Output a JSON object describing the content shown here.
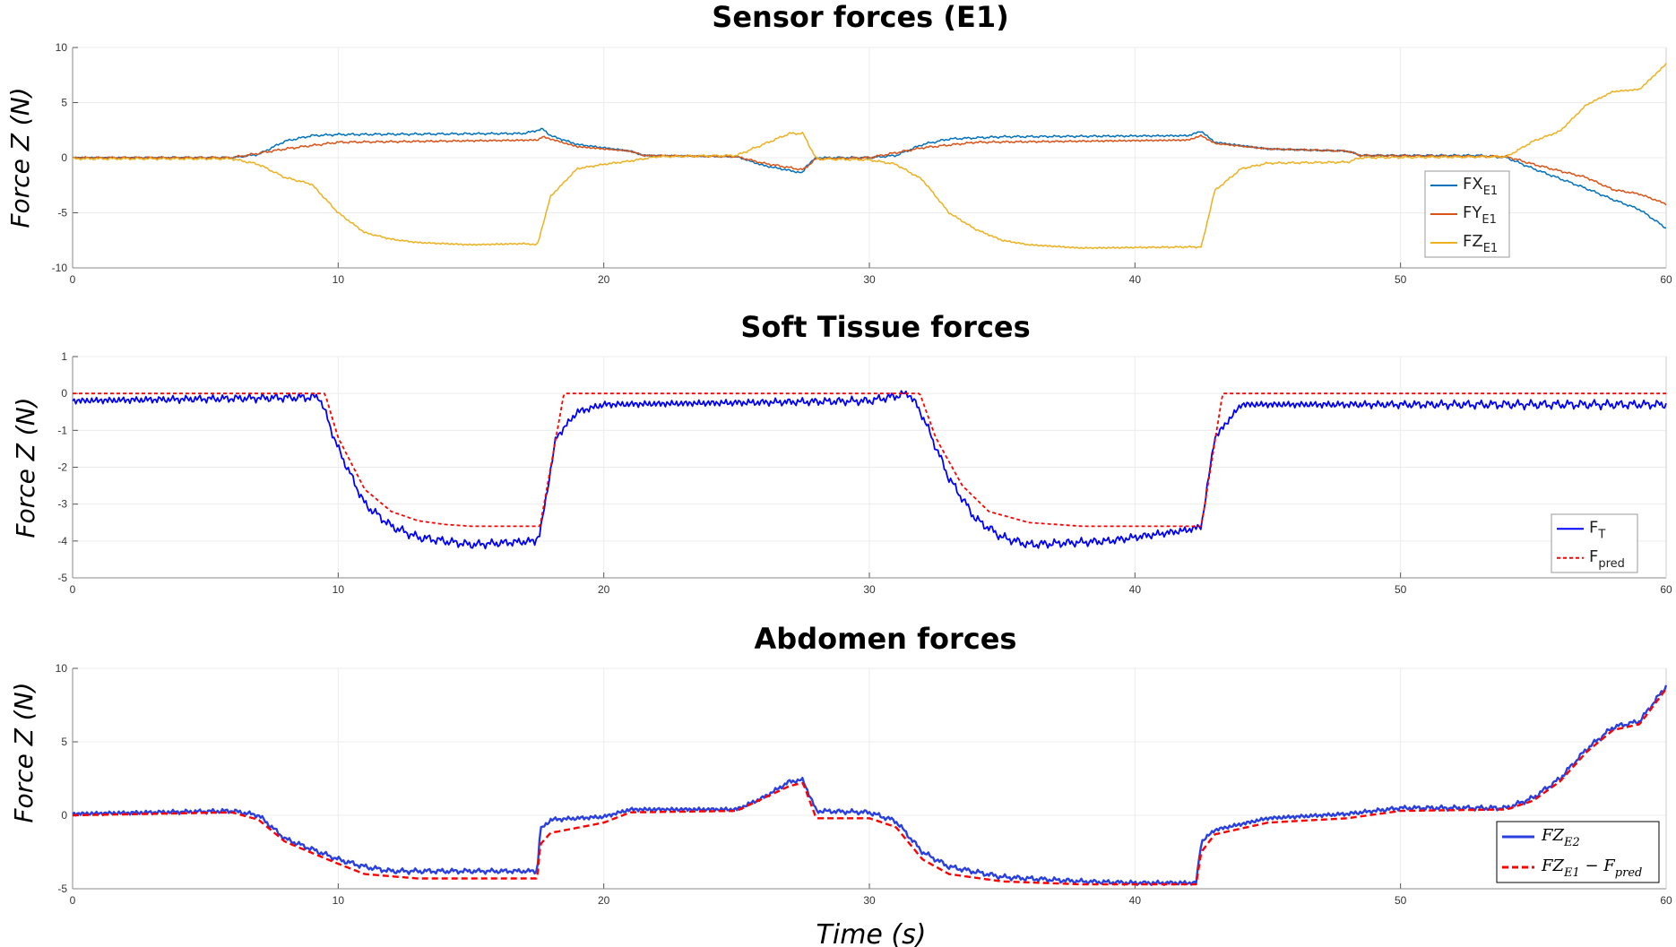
{
  "chart_data": [
    {
      "type": "line",
      "title": "Sensor forces (E1)",
      "ylabel": "Force Z (N)",
      "xlabel": "",
      "xlim": [
        0,
        60
      ],
      "ylim": [
        -10,
        10
      ],
      "xticks": [
        "0",
        "10",
        "20",
        "30",
        "40",
        "50",
        "60"
      ],
      "yticks": [
        "10",
        "5",
        "0",
        "-5",
        "-10"
      ],
      "grid": true,
      "legend_placement": "lower-right",
      "series": [
        {
          "name": "FX",
          "sub": "E1",
          "color": "#0072BD",
          "style": "solid",
          "points": [
            [
              0,
              0
            ],
            [
              6,
              0
            ],
            [
              7,
              0.3
            ],
            [
              8,
              1.5
            ],
            [
              9,
              2
            ],
            [
              10,
              2.1
            ],
            [
              17,
              2.2
            ],
            [
              17.7,
              2.6
            ],
            [
              18,
              2
            ],
            [
              19,
              1.2
            ],
            [
              21,
              0.6
            ],
            [
              21.5,
              0.2
            ],
            [
              25,
              0.1
            ],
            [
              26,
              -0.7
            ],
            [
              27.5,
              -1.4
            ],
            [
              27.6,
              -0.8
            ],
            [
              28,
              0
            ],
            [
              30,
              0
            ],
            [
              31,
              0.2
            ],
            [
              32,
              1.2
            ],
            [
              33,
              1.7
            ],
            [
              35,
              1.9
            ],
            [
              42,
              2
            ],
            [
              42.5,
              2.4
            ],
            [
              43,
              1.4
            ],
            [
              45,
              0.8
            ],
            [
              48,
              0.6
            ],
            [
              48.5,
              0.2
            ],
            [
              53,
              0.2
            ],
            [
              54,
              0
            ],
            [
              55,
              -1
            ],
            [
              57,
              -2.8
            ],
            [
              58,
              -3.8
            ],
            [
              59,
              -4.7
            ],
            [
              60,
              -6.4
            ]
          ]
        },
        {
          "name": "FY",
          "sub": "E1",
          "color": "#D95319",
          "style": "solid",
          "points": [
            [
              0,
              0
            ],
            [
              6,
              0
            ],
            [
              8,
              0.8
            ],
            [
              10,
              1.4
            ],
            [
              17.5,
              1.6
            ],
            [
              17.7,
              1.9
            ],
            [
              19,
              1
            ],
            [
              21,
              0.6
            ],
            [
              21.5,
              0.2
            ],
            [
              25,
              0.1
            ],
            [
              26,
              -0.5
            ],
            [
              27.5,
              -1.1
            ],
            [
              28,
              -0.1
            ],
            [
              30,
              0
            ],
            [
              32,
              0.9
            ],
            [
              34,
              1.4
            ],
            [
              42,
              1.6
            ],
            [
              42.5,
              2
            ],
            [
              43,
              1.3
            ],
            [
              45,
              0.8
            ],
            [
              48,
              0.6
            ],
            [
              48.5,
              0.2
            ],
            [
              54,
              0.1
            ],
            [
              55,
              -0.6
            ],
            [
              57,
              -1.8
            ],
            [
              58,
              -2.9
            ],
            [
              59,
              -3.3
            ],
            [
              60,
              -4.2
            ]
          ]
        },
        {
          "name": "FZ",
          "sub": "E1",
          "color": "#EDB120",
          "style": "solid",
          "points": [
            [
              0,
              -0.1
            ],
            [
              6,
              -0.1
            ],
            [
              7,
              -0.6
            ],
            [
              8,
              -1.8
            ],
            [
              9,
              -2.4
            ],
            [
              10,
              -5
            ],
            [
              11,
              -6.8
            ],
            [
              12,
              -7.4
            ],
            [
              13,
              -7.7
            ],
            [
              15,
              -7.9
            ],
            [
              17,
              -7.8
            ],
            [
              17.5,
              -7.9
            ],
            [
              18,
              -3.5
            ],
            [
              19,
              -1
            ],
            [
              20,
              -0.6
            ],
            [
              21,
              -0.3
            ],
            [
              22,
              0.1
            ],
            [
              25,
              0.2
            ],
            [
              26,
              1.2
            ],
            [
              27,
              2.2
            ],
            [
              27.5,
              2.2
            ],
            [
              28,
              -0.1
            ],
            [
              30,
              -0.2
            ],
            [
              31,
              -0.6
            ],
            [
              32,
              -2
            ],
            [
              33,
              -5
            ],
            [
              34,
              -6.5
            ],
            [
              35,
              -7.5
            ],
            [
              36,
              -7.9
            ],
            [
              38,
              -8.2
            ],
            [
              42,
              -8.1
            ],
            [
              42.5,
              -8.1
            ],
            [
              43,
              -3
            ],
            [
              44,
              -1
            ],
            [
              45,
              -0.5
            ],
            [
              48,
              -0.4
            ],
            [
              48.5,
              0
            ],
            [
              54,
              0.1
            ],
            [
              55,
              1.5
            ],
            [
              56,
              2.4
            ],
            [
              57,
              4.8
            ],
            [
              58,
              6
            ],
            [
              59,
              6.2
            ],
            [
              60,
              8.5
            ]
          ]
        }
      ]
    },
    {
      "type": "line",
      "title": "Soft Tissue forces",
      "ylabel": "Force Z (N)",
      "xlabel": "",
      "xlim": [
        0,
        60
      ],
      "ylim": [
        -5,
        1
      ],
      "xticks": [
        "0",
        "10",
        "20",
        "30",
        "40",
        "50",
        "60"
      ],
      "yticks": [
        "1",
        "0",
        "-1",
        "-2",
        "-3",
        "-4",
        "-5"
      ],
      "grid": true,
      "legend_placement": "lower-right",
      "series": [
        {
          "name": "F",
          "sub": "T",
          "color": "#0000FF",
          "style": "solid",
          "points": [
            [
              0,
              -0.2
            ],
            [
              9.3,
              -0.1
            ],
            [
              10,
              -1.5
            ],
            [
              11,
              -3
            ],
            [
              12,
              -3.6
            ],
            [
              13,
              -3.9
            ],
            [
              15,
              -4.1
            ],
            [
              17.4,
              -4
            ],
            [
              17.6,
              -3.8
            ],
            [
              18.2,
              -1.2
            ],
            [
              19,
              -0.5
            ],
            [
              20,
              -0.3
            ],
            [
              30,
              -0.2
            ],
            [
              31.5,
              0
            ],
            [
              32,
              -0.6
            ],
            [
              33,
              -2.3
            ],
            [
              34,
              -3.4
            ],
            [
              35,
              -3.9
            ],
            [
              36,
              -4.1
            ],
            [
              39,
              -4
            ],
            [
              42,
              -3.7
            ],
            [
              42.5,
              -3.6
            ],
            [
              43,
              -1.2
            ],
            [
              44,
              -0.3
            ],
            [
              60,
              -0.3
            ]
          ]
        },
        {
          "name": "F",
          "sub": "pred",
          "color": "#FF0000",
          "style": "dashed",
          "points": [
            [
              0,
              0
            ],
            [
              9.5,
              0
            ],
            [
              10,
              -1.2
            ],
            [
              11,
              -2.6
            ],
            [
              12,
              -3.2
            ],
            [
              13,
              -3.45
            ],
            [
              14,
              -3.55
            ],
            [
              15,
              -3.6
            ],
            [
              17.6,
              -3.6
            ],
            [
              18.5,
              0
            ],
            [
              31.9,
              0
            ],
            [
              32.5,
              -1.2
            ],
            [
              33.5,
              -2.5
            ],
            [
              34.5,
              -3.2
            ],
            [
              36,
              -3.5
            ],
            [
              38,
              -3.6
            ],
            [
              42.5,
              -3.6
            ],
            [
              43.3,
              0
            ],
            [
              60,
              0
            ]
          ]
        }
      ]
    },
    {
      "type": "line",
      "title": "Abdomen forces",
      "ylabel": "Force Z (N)",
      "xlabel": "Time (s)",
      "xlim": [
        0,
        60
      ],
      "ylim": [
        -5,
        10
      ],
      "xticks": [
        "0",
        "10",
        "20",
        "30",
        "40",
        "50",
        "60"
      ],
      "yticks": [
        "10",
        "5",
        "0",
        "-5"
      ],
      "grid": true,
      "legend_placement": "lower-right",
      "series": [
        {
          "name": "FZ",
          "sub": "E2",
          "label": "",
          "color": "#2A3FE0",
          "style": "solid",
          "points": [
            [
              0,
              0.1
            ],
            [
              6,
              0.3
            ],
            [
              7,
              0
            ],
            [
              8,
              -1.6
            ],
            [
              9,
              -2.3
            ],
            [
              10,
              -3
            ],
            [
              11,
              -3.5
            ],
            [
              12,
              -3.8
            ],
            [
              17.5,
              -3.8
            ],
            [
              17.6,
              -1
            ],
            [
              18,
              -0.3
            ],
            [
              20,
              -0.1
            ],
            [
              21,
              0.4
            ],
            [
              25,
              0.4
            ],
            [
              26,
              1.2
            ],
            [
              27,
              2.3
            ],
            [
              27.5,
              2.4
            ],
            [
              28,
              0.3
            ],
            [
              30,
              0.2
            ],
            [
              31,
              -0.4
            ],
            [
              32,
              -2.5
            ],
            [
              33,
              -3.5
            ],
            [
              35,
              -4.2
            ],
            [
              38,
              -4.5
            ],
            [
              40,
              -4.6
            ],
            [
              42.3,
              -4.6
            ],
            [
              42.5,
              -1.8
            ],
            [
              43,
              -1
            ],
            [
              45,
              -0.2
            ],
            [
              48,
              0.1
            ],
            [
              50,
              0.5
            ],
            [
              54,
              0.5
            ],
            [
              55,
              1.2
            ],
            [
              56,
              2.5
            ],
            [
              57,
              4.5
            ],
            [
              58,
              6
            ],
            [
              59,
              6.4
            ],
            [
              60,
              8.8
            ]
          ]
        },
        {
          "name": "FZ",
          "sub": "E1",
          "label": "− F",
          "sub2": "pred",
          "color": "#FF0000",
          "style": "dashed",
          "points": [
            [
              0,
              0
            ],
            [
              6,
              0.2
            ],
            [
              7,
              -0.3
            ],
            [
              8,
              -1.8
            ],
            [
              10,
              -3.3
            ],
            [
              11,
              -4
            ],
            [
              13,
              -4.3
            ],
            [
              17.5,
              -4.3
            ],
            [
              17.6,
              -2
            ],
            [
              18,
              -1.2
            ],
            [
              20,
              -0.5
            ],
            [
              21,
              0.2
            ],
            [
              25,
              0.3
            ],
            [
              27,
              2
            ],
            [
              27.5,
              2.2
            ],
            [
              28,
              -0.2
            ],
            [
              30,
              -0.2
            ],
            [
              31,
              -0.8
            ],
            [
              32,
              -3
            ],
            [
              33,
              -4
            ],
            [
              35,
              -4.5
            ],
            [
              38,
              -4.7
            ],
            [
              42.3,
              -4.7
            ],
            [
              42.5,
              -2.5
            ],
            [
              43,
              -1.3
            ],
            [
              45,
              -0.5
            ],
            [
              48,
              -0.2
            ],
            [
              50,
              0.3
            ],
            [
              54,
              0.4
            ],
            [
              55,
              1
            ],
            [
              56,
              2.3
            ],
            [
              57,
              4.3
            ],
            [
              58,
              5.8
            ],
            [
              59,
              6.2
            ],
            [
              60,
              8.6
            ]
          ]
        }
      ]
    }
  ]
}
